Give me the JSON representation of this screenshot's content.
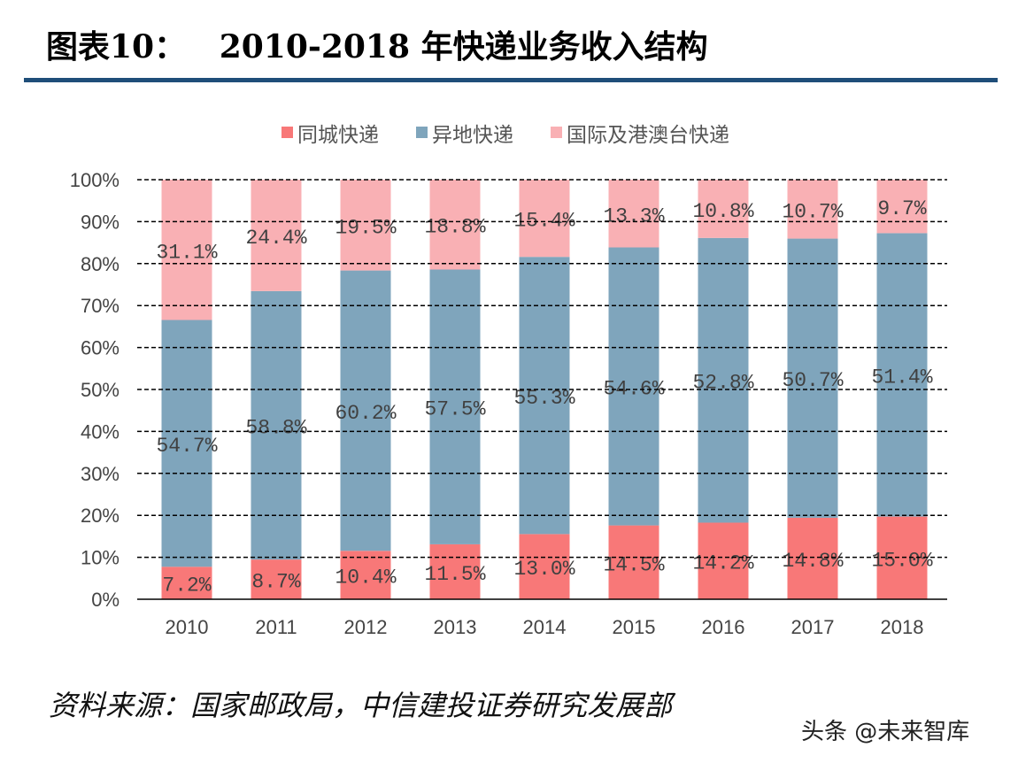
{
  "header": {
    "title": "图表10：   2010-2018 年快递业务收入结构"
  },
  "footer": {
    "source": "资料来源：国家邮政局，中信建投证券研究发展部",
    "watermark": "头条 @未来智库"
  },
  "chart_data": {
    "type": "bar",
    "stacked": "percent",
    "categories": [
      "2010",
      "2011",
      "2012",
      "2013",
      "2014",
      "2015",
      "2016",
      "2017",
      "2018"
    ],
    "series": [
      {
        "name": "同城快递",
        "color": "#f87878",
        "values": [
          7.2,
          8.7,
          10.4,
          11.5,
          13.0,
          14.5,
          14.2,
          14.8,
          15.0
        ]
      },
      {
        "name": "异地快递",
        "color": "#7fa5bc",
        "values": [
          54.7,
          58.8,
          60.2,
          57.5,
          55.3,
          54.6,
          52.8,
          50.7,
          51.4
        ]
      },
      {
        "name": "国际及港澳台快递",
        "color": "#f9b0b4",
        "values": [
          31.1,
          24.4,
          19.5,
          18.8,
          15.4,
          13.3,
          10.8,
          10.7,
          9.7
        ]
      }
    ],
    "ylim": [
      0,
      100
    ],
    "yticks": [
      "0%",
      "10%",
      "20%",
      "30%",
      "40%",
      "50%",
      "60%",
      "70%",
      "80%",
      "90%",
      "100%"
    ],
    "grid": "dashed horizontal",
    "legend": "top"
  }
}
